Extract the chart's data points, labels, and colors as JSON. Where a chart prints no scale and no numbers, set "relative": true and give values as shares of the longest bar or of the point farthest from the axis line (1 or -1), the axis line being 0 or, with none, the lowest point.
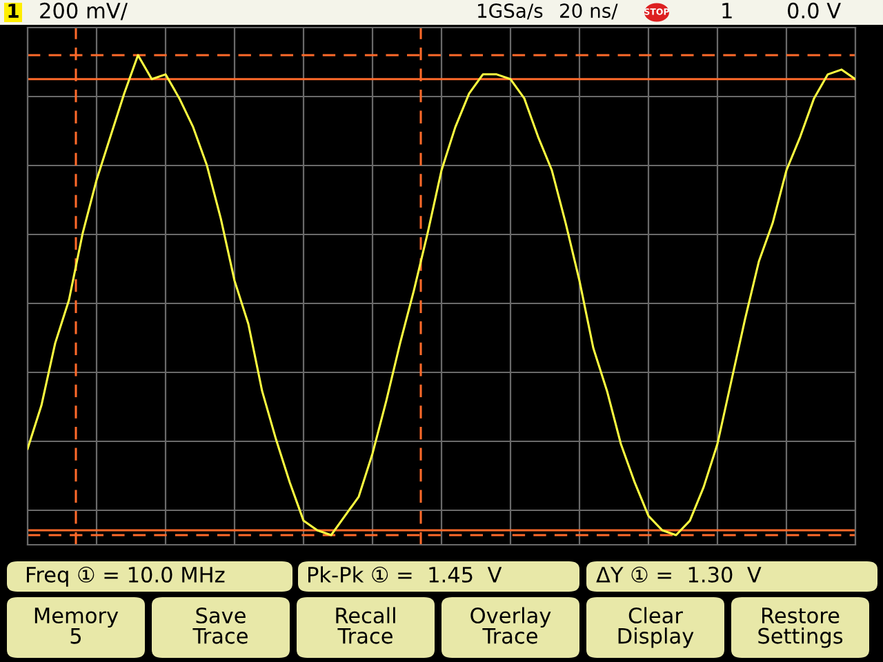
{
  "chart_data": {
    "type": "line",
    "relative": true,
    "categories": [
      null,
      null,
      null,
      null,
      null,
      null,
      null,
      null,
      null,
      null,
      null,
      null,
      null,
      null,
      null,
      null,
      null,
      null,
      null,
      null,
      null,
      null,
      null,
      null,
      null,
      null,
      null,
      null,
      null,
      null,
      null,
      null,
      null,
      null,
      null,
      null,
      null,
      null,
      null,
      null,
      null,
      null,
      null,
      null,
      null,
      null,
      null,
      null,
      null,
      null,
      null,
      null,
      null,
      null,
      null,
      null,
      null,
      null,
      null,
      null,
      null
    ],
    "series": [
      {
        "color": "#ffff40",
        "values": [
          0.18,
          0.27,
          0.4,
          0.49,
          0.63,
          0.74,
          0.83,
          0.92,
          1.0,
          0.95,
          0.96,
          0.91,
          0.85,
          0.77,
          0.66,
          0.53,
          0.44,
          0.3,
          0.2,
          0.11,
          0.03,
          0.01,
          0,
          0.04,
          0.08,
          0.17,
          0.28,
          0.4,
          0.51,
          0.63,
          0.76,
          0.85,
          0.92,
          0.96,
          0.96,
          0.95,
          0.91,
          0.83,
          0.76,
          0.65,
          0.53,
          0.39,
          0.3,
          0.19,
          0.11,
          0.04,
          0.01,
          0,
          0.03,
          0.1,
          0.19,
          0.32,
          0.45,
          0.57,
          0.65,
          0.76,
          0.83,
          0.91,
          0.96,
          0.97,
          0.95
        ]
      }
    ],
    "grid": true,
    "ref_lines": [
      {
        "axis": "y",
        "value": 0.95,
        "color": "#ff6a2a",
        "line_style": "solid"
      },
      {
        "axis": "y",
        "value": 0.01,
        "color": "#ff6a2a",
        "line_style": "solid"
      }
    ],
    "annotations": [
      "1",
      "200 mV/",
      "1GSa/s",
      "20 ns/",
      "STOP",
      "1",
      "0.0 V",
      "Freq ① = 10.0 MHz",
      "Pk-Pk ① =  1.45  V",
      "ΔY ① =  1.30  V",
      "Memory\n5",
      "Save\nTrace",
      "Recall\nTrace",
      "Overlay\nTrace",
      "Clear\nDisplay",
      "Restore\nSettings"
    ]
  }
}
